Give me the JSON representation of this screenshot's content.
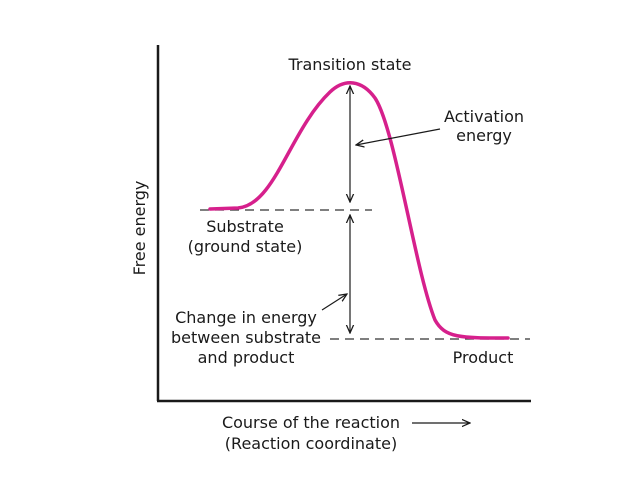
{
  "diagram": {
    "y_axis_label": "Free energy",
    "x_axis_label_line1": "Course of the reaction",
    "x_axis_label_line2": "(Reaction coordinate)",
    "transition_state_label": "Transition state",
    "activation_energy_line1": "Activation",
    "activation_energy_line2": "energy",
    "substrate_line1": "Substrate",
    "substrate_line2": "(ground state)",
    "change_line1": "Change in energy",
    "change_line2": "between substrate",
    "change_line3": "and product",
    "product_label": "Product",
    "curve_color": "#d6208c",
    "axis_color": "#1a1a1a"
  }
}
